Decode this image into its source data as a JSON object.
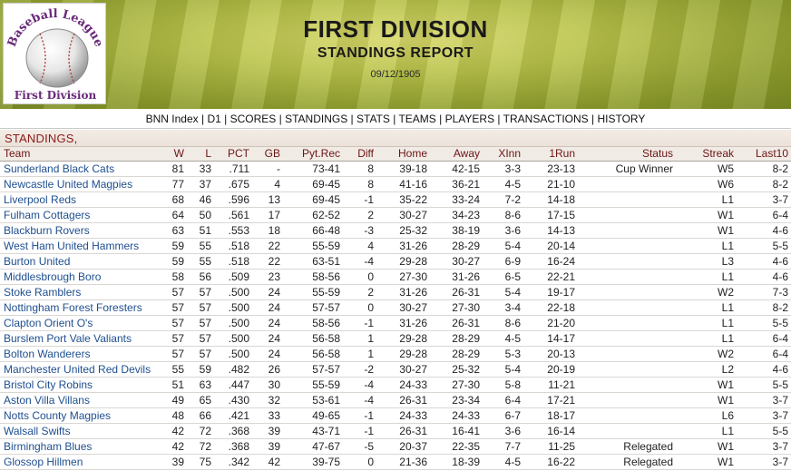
{
  "logo": {
    "line1": "Baseball League",
    "line2": "First Division"
  },
  "header": {
    "title": "FIRST DIVISION",
    "subtitle": "STANDINGS REPORT",
    "date": "09/12/1905"
  },
  "nav": {
    "items": [
      "BNN Index",
      "D1",
      "SCORES",
      "STANDINGS",
      "STATS",
      "TEAMS",
      "PLAYERS",
      "TRANSACTIONS",
      "HISTORY"
    ]
  },
  "section": {
    "title": "STANDINGS,"
  },
  "table": {
    "headers": [
      "Team",
      "W",
      "L",
      "PCT",
      "GB",
      "Pyt.Rec",
      "Diff",
      "Home",
      "Away",
      "XInn",
      "1Run",
      "Status",
      "Streak",
      "Last10"
    ],
    "rows": [
      [
        "Sunderland Black Cats",
        "81",
        "33",
        ".711",
        "-",
        "73-41",
        "8",
        "39-18",
        "42-15",
        "3-3",
        "23-13",
        "Cup Winner",
        "W5",
        "8-2"
      ],
      [
        "Newcastle United Magpies",
        "77",
        "37",
        ".675",
        "4",
        "69-45",
        "8",
        "41-16",
        "36-21",
        "4-5",
        "21-10",
        "",
        "W6",
        "8-2"
      ],
      [
        "Liverpool Reds",
        "68",
        "46",
        ".596",
        "13",
        "69-45",
        "-1",
        "35-22",
        "33-24",
        "7-2",
        "14-18",
        "",
        "L1",
        "3-7"
      ],
      [
        "Fulham Cottagers",
        "64",
        "50",
        ".561",
        "17",
        "62-52",
        "2",
        "30-27",
        "34-23",
        "8-6",
        "17-15",
        "",
        "W1",
        "6-4"
      ],
      [
        "Blackburn Rovers",
        "63",
        "51",
        ".553",
        "18",
        "66-48",
        "-3",
        "25-32",
        "38-19",
        "3-6",
        "14-13",
        "",
        "W1",
        "4-6"
      ],
      [
        "West Ham United Hammers",
        "59",
        "55",
        ".518",
        "22",
        "55-59",
        "4",
        "31-26",
        "28-29",
        "5-4",
        "20-14",
        "",
        "L1",
        "5-5"
      ],
      [
        "Burton United",
        "59",
        "55",
        ".518",
        "22",
        "63-51",
        "-4",
        "29-28",
        "30-27",
        "6-9",
        "16-24",
        "",
        "L3",
        "4-6"
      ],
      [
        "Middlesbrough Boro",
        "58",
        "56",
        ".509",
        "23",
        "58-56",
        "0",
        "27-30",
        "31-26",
        "6-5",
        "22-21",
        "",
        "L1",
        "4-6"
      ],
      [
        "Stoke Ramblers",
        "57",
        "57",
        ".500",
        "24",
        "55-59",
        "2",
        "31-26",
        "26-31",
        "5-4",
        "19-17",
        "",
        "W2",
        "7-3"
      ],
      [
        "Nottingham Forest Foresters",
        "57",
        "57",
        ".500",
        "24",
        "57-57",
        "0",
        "30-27",
        "27-30",
        "3-4",
        "22-18",
        "",
        "L1",
        "8-2"
      ],
      [
        "Clapton Orient O's",
        "57",
        "57",
        ".500",
        "24",
        "58-56",
        "-1",
        "31-26",
        "26-31",
        "8-6",
        "21-20",
        "",
        "L1",
        "5-5"
      ],
      [
        "Burslem Port Vale Valiants",
        "57",
        "57",
        ".500",
        "24",
        "56-58",
        "1",
        "29-28",
        "28-29",
        "4-5",
        "14-17",
        "",
        "L1",
        "6-4"
      ],
      [
        "Bolton Wanderers",
        "57",
        "57",
        ".500",
        "24",
        "56-58",
        "1",
        "29-28",
        "28-29",
        "5-3",
        "20-13",
        "",
        "W2",
        "6-4"
      ],
      [
        "Manchester United Red Devils",
        "55",
        "59",
        ".482",
        "26",
        "57-57",
        "-2",
        "30-27",
        "25-32",
        "5-4",
        "20-19",
        "",
        "L2",
        "4-6"
      ],
      [
        "Bristol City Robins",
        "51",
        "63",
        ".447",
        "30",
        "55-59",
        "-4",
        "24-33",
        "27-30",
        "5-8",
        "11-21",
        "",
        "W1",
        "5-5"
      ],
      [
        "Aston Villa Villans",
        "49",
        "65",
        ".430",
        "32",
        "53-61",
        "-4",
        "26-31",
        "23-34",
        "6-4",
        "17-21",
        "",
        "W1",
        "3-7"
      ],
      [
        "Notts County Magpies",
        "48",
        "66",
        ".421",
        "33",
        "49-65",
        "-1",
        "24-33",
        "24-33",
        "6-7",
        "18-17",
        "",
        "L6",
        "3-7"
      ],
      [
        "Walsall Swifts",
        "42",
        "72",
        ".368",
        "39",
        "43-71",
        "-1",
        "26-31",
        "16-41",
        "3-6",
        "16-14",
        "",
        "L1",
        "5-5"
      ],
      [
        "Birmingham Blues",
        "42",
        "72",
        ".368",
        "39",
        "47-67",
        "-5",
        "20-37",
        "22-35",
        "7-7",
        "11-25",
        "Relegated",
        "W1",
        "3-7"
      ],
      [
        "Glossop Hillmen",
        "39",
        "75",
        ".342",
        "42",
        "39-75",
        "0",
        "21-36",
        "18-39",
        "4-5",
        "16-22",
        "Relegated",
        "W1",
        "3-7"
      ]
    ]
  },
  "colors": {
    "team_link": "#1f4f8f",
    "header_text": "#6b1414",
    "section_title": "#8b1a1a",
    "banner_grass": "#b9c34a"
  }
}
